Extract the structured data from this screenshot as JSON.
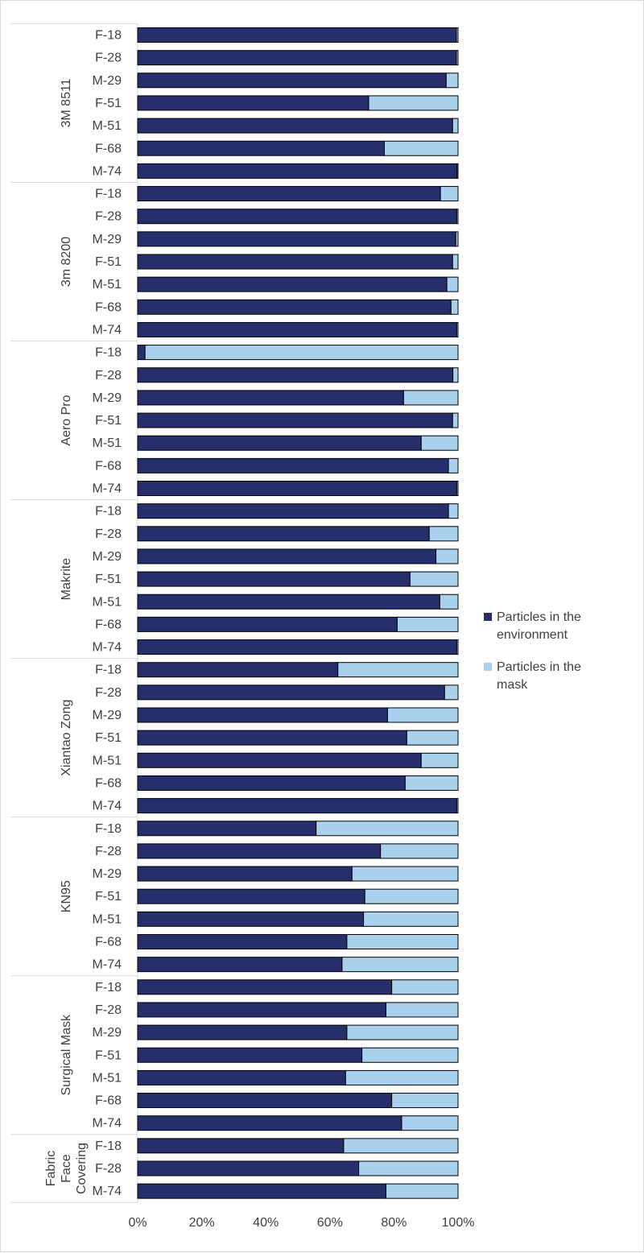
{
  "chart_data": {
    "type": "bar",
    "orientation": "horizontal",
    "stacked": "percent",
    "title": "",
    "xlabel": "",
    "ylabel": "",
    "xlim": [
      0,
      100
    ],
    "x_ticks": [
      "0%",
      "20%",
      "40%",
      "60%",
      "80%",
      "100%"
    ],
    "grid": false,
    "legend_position": "right",
    "series": [
      {
        "name": "Particles in the environment",
        "name_lines": [
          "Particles in the",
          "environment"
        ],
        "color": "#262f6b"
      },
      {
        "name": "Particles in the mask",
        "name_lines": [
          "Particles in the",
          "mask"
        ],
        "color": "#a9d1ee"
      }
    ],
    "groups": [
      {
        "name": "3M 8511",
        "name_lines": [
          "3M 8511"
        ],
        "categories": [
          "F-18",
          "F-28",
          "M-29",
          "F-51",
          "M-51",
          "F-68",
          "M-74"
        ],
        "environment": [
          99.5,
          99.5,
          96.3,
          72.1,
          98.3,
          77.0,
          99.7
        ]
      },
      {
        "name": "3m 8200",
        "name_lines": [
          "3m 8200"
        ],
        "categories": [
          "F-18",
          "F-28",
          "M-29",
          "F-51",
          "M-51",
          "F-68",
          "M-74"
        ],
        "environment": [
          94.5,
          99.6,
          99.3,
          98.3,
          96.5,
          97.8,
          99.6
        ]
      },
      {
        "name": "Aero Pro",
        "name_lines": [
          "Aero Pro"
        ],
        "categories": [
          "F-18",
          "F-28",
          "M-29",
          "F-51",
          "M-51",
          "F-68",
          "M-74"
        ],
        "environment": [
          2.3,
          98.4,
          83.0,
          98.3,
          88.5,
          97.0,
          99.6
        ]
      },
      {
        "name": "Makrite",
        "name_lines": [
          "Makrite"
        ],
        "categories": [
          "F-18",
          "F-28",
          "M-29",
          "F-51",
          "M-51",
          "F-68",
          "M-74"
        ],
        "environment": [
          97.0,
          91.0,
          93.1,
          85.0,
          94.3,
          81.0,
          99.6
        ]
      },
      {
        "name": "Xiantao Zong",
        "name_lines": [
          "Xiantao Zong"
        ],
        "categories": [
          "F-18",
          "F-28",
          "M-29",
          "F-51",
          "M-51",
          "F-68",
          "M-74"
        ],
        "environment": [
          62.5,
          95.8,
          78.0,
          84.0,
          88.5,
          83.5,
          99.6
        ]
      },
      {
        "name": "KN95",
        "name_lines": [
          "KN95"
        ],
        "categories": [
          "F-18",
          "F-28",
          "M-29",
          "F-51",
          "M-51",
          "F-68",
          "M-74"
        ],
        "environment": [
          55.7,
          75.8,
          66.9,
          70.9,
          70.5,
          65.3,
          63.8
        ]
      },
      {
        "name": "Surgical Mask",
        "name_lines": [
          "Surgical Mask"
        ],
        "categories": [
          "F-18",
          "F-28",
          "M-29",
          "F-51",
          "M-51",
          "F-68",
          "M-74"
        ],
        "environment": [
          79.3,
          77.5,
          65.3,
          70.0,
          64.9,
          79.3,
          82.4
        ]
      },
      {
        "name": "Fabric Face Covering",
        "name_lines": [
          "Fabric",
          "Face",
          "Covering"
        ],
        "categories": [
          "F-18",
          "F-28",
          "M-74"
        ],
        "environment": [
          64.3,
          69.0,
          77.5
        ]
      }
    ]
  }
}
